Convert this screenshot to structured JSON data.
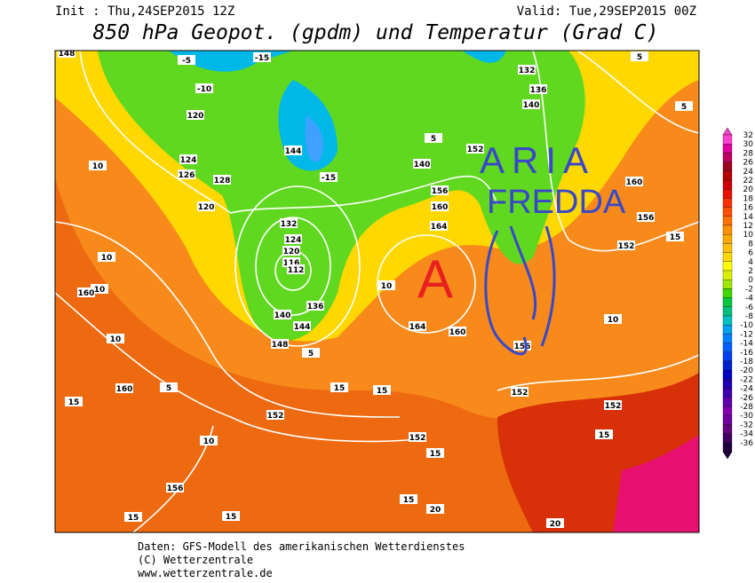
{
  "header": {
    "init": "Init : Thu,24SEP2015 12Z",
    "valid": "Valid: Tue,29SEP2015 00Z",
    "title": "850 hPa Geopot. (gpdm) und Temperatur (Grad C)"
  },
  "annotations": {
    "high": "A",
    "cold_line1": "ARIA",
    "cold_line2": "FREDDA"
  },
  "colorbar": {
    "labels": [
      32,
      30,
      28,
      26,
      24,
      22,
      20,
      18,
      16,
      14,
      12,
      10,
      8,
      6,
      4,
      2,
      0,
      -2,
      -4,
      -6,
      -8,
      -10,
      -12,
      -14,
      -16,
      -18,
      -20,
      -22,
      -24,
      -26,
      -28,
      -30,
      -32,
      -34,
      -36
    ],
    "colors": [
      "#ff40d0",
      "#e000a0",
      "#c00060",
      "#a00020",
      "#b80000",
      "#d00000",
      "#e81000",
      "#ff3000",
      "#ff5000",
      "#ff7000",
      "#ff9000",
      "#ffa800",
      "#ffc000",
      "#ffd800",
      "#ffff00",
      "#d8f000",
      "#a0e800",
      "#40d800",
      "#00c840",
      "#00c080",
      "#00c0c0",
      "#00a0f0",
      "#0080ff",
      "#0060ff",
      "#0040f0",
      "#0020d0",
      "#0000c0",
      "#2000b0",
      "#4000b0",
      "#6000b0",
      "#8000b0",
      "#7000a0",
      "#600080",
      "#400060",
      "#200040"
    ]
  },
  "contour_labels": [
    148,
    120,
    124,
    126,
    128,
    120,
    132,
    124,
    120,
    116,
    112,
    136,
    140,
    144,
    148,
    10,
    10,
    10,
    160,
    10,
    160,
    5,
    15,
    152,
    10,
    156,
    15,
    15,
    5,
    10,
    164,
    160,
    156,
    152,
    152,
    15,
    10,
    15,
    20,
    152,
    156,
    160,
    132,
    136,
    140,
    152,
    156,
    160,
    164,
    140,
    144,
    5,
    5,
    -10,
    -5,
    -15,
    -15,
    5,
    152,
    15,
    20,
    15,
    15,
    15
  ],
  "footer": {
    "line1": "Daten: GFS-Modell des amerikanischen Wetterdienstes",
    "line2": "(C) Wetterzentrale",
    "line3": "www.wetterzentrale.de"
  }
}
